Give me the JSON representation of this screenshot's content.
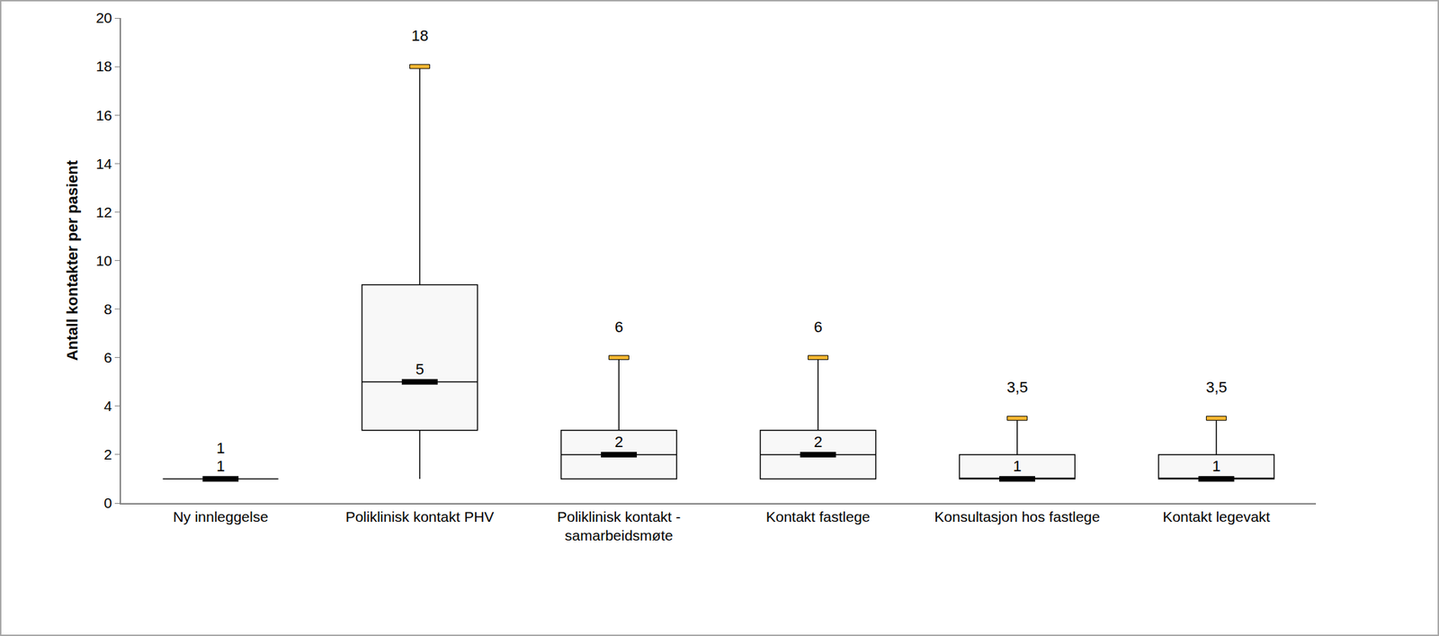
{
  "chart_data": {
    "type": "box",
    "y_label": "Antall kontakter per pasient",
    "categories": [
      "Ny innleggelse",
      "Poliklinisk kontakt PHV",
      "Poliklinisk kontakt - samarbeidsmøte",
      "Kontakt fastlege",
      "Konsultasjon hos fastlege",
      "Kontakt legevakt"
    ],
    "min": [
      1,
      1,
      1,
      1,
      1,
      1
    ],
    "q1": [
      1,
      3,
      1,
      1,
      1,
      1
    ],
    "median": [
      1,
      5,
      2,
      2,
      1,
      1
    ],
    "q3": [
      1,
      9,
      3,
      3,
      2,
      2
    ],
    "max": [
      1,
      18,
      6,
      6,
      3.5,
      3.5
    ],
    "max_labels": [
      "1",
      "18",
      "6",
      "6",
      "3,5",
      "3,5"
    ],
    "median_labels": [
      "1",
      "5",
      "2",
      "2",
      "1",
      "1"
    ],
    "data_labels": true,
    "color": "#f8f8f8",
    "ylim": [
      0,
      20
    ],
    "yticks": [
      0,
      2,
      4,
      6,
      8,
      10,
      12,
      14,
      16,
      18,
      20
    ],
    "grid": false
  }
}
